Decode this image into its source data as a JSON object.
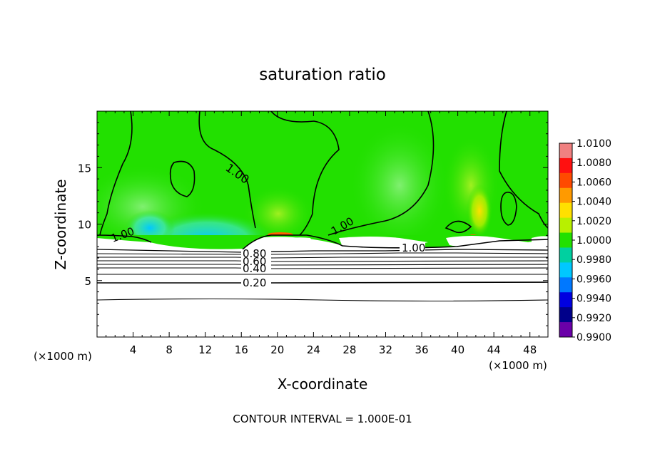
{
  "chart_data": {
    "type": "heatmap",
    "title": "saturation ratio",
    "xlabel": "X-coordinate",
    "ylabel": "Z-coordinate",
    "x_unit_left": "(×1000 m)",
    "x_unit_right": "(×1000 m)",
    "footer": "CONTOUR INTERVAL = 1.000E-01",
    "xlim": [
      0,
      50
    ],
    "ylim": [
      0,
      20
    ],
    "x_ticks": [
      "4",
      "8",
      "12",
      "16",
      "20",
      "24",
      "28",
      "32",
      "36",
      "40",
      "44",
      "48"
    ],
    "x_tick_values": [
      4,
      8,
      12,
      16,
      20,
      24,
      28,
      32,
      36,
      40,
      44,
      48
    ],
    "y_ticks": [
      "5",
      "10",
      "15"
    ],
    "y_tick_values": [
      5,
      10,
      15
    ],
    "colorbar": {
      "labels": [
        "1.0100",
        "1.0080",
        "1.0060",
        "1.0040",
        "1.0020",
        "1.0000",
        "0.9980",
        "0.9960",
        "0.9940",
        "0.9920",
        "0.9900"
      ],
      "values": [
        1.01,
        1.008,
        1.006,
        1.004,
        1.002,
        1.0,
        0.998,
        0.996,
        0.994,
        0.992,
        0.99
      ],
      "colors": [
        "#f08080",
        "#ff1010",
        "#ff4a00",
        "#ff9a00",
        "#ffe000",
        "#b8f000",
        "#22e000",
        "#00d0a0",
        "#00c8ff",
        "#0078ff",
        "#0000e0",
        "#00008a",
        "#6a00a8"
      ]
    },
    "field": {
      "cloud_layer_z": [
        9.0,
        20.0
      ],
      "saturation_base_value": 1.0
    },
    "contour_labels": [
      {
        "text": "1.00",
        "x": 15.5,
        "z": 15.5
      },
      {
        "text": "1.00",
        "x": 3.0,
        "z": 8.7
      },
      {
        "text": "1.00",
        "x": 28.0,
        "z": 9.5
      },
      {
        "text": "1.00",
        "x": 35.5,
        "z": 7.8
      },
      {
        "text": "0.80",
        "x": 17.5,
        "z": 7.1
      },
      {
        "text": "0.60",
        "x": 17.5,
        "z": 6.6
      },
      {
        "text": "0.40",
        "x": 17.5,
        "z": 6.0
      },
      {
        "text": "0.20",
        "x": 17.5,
        "z": 4.8
      }
    ],
    "contour_levels": [
      0.1,
      0.2,
      0.3,
      0.4,
      0.5,
      0.6,
      0.7,
      0.8,
      0.9,
      1.0
    ]
  }
}
